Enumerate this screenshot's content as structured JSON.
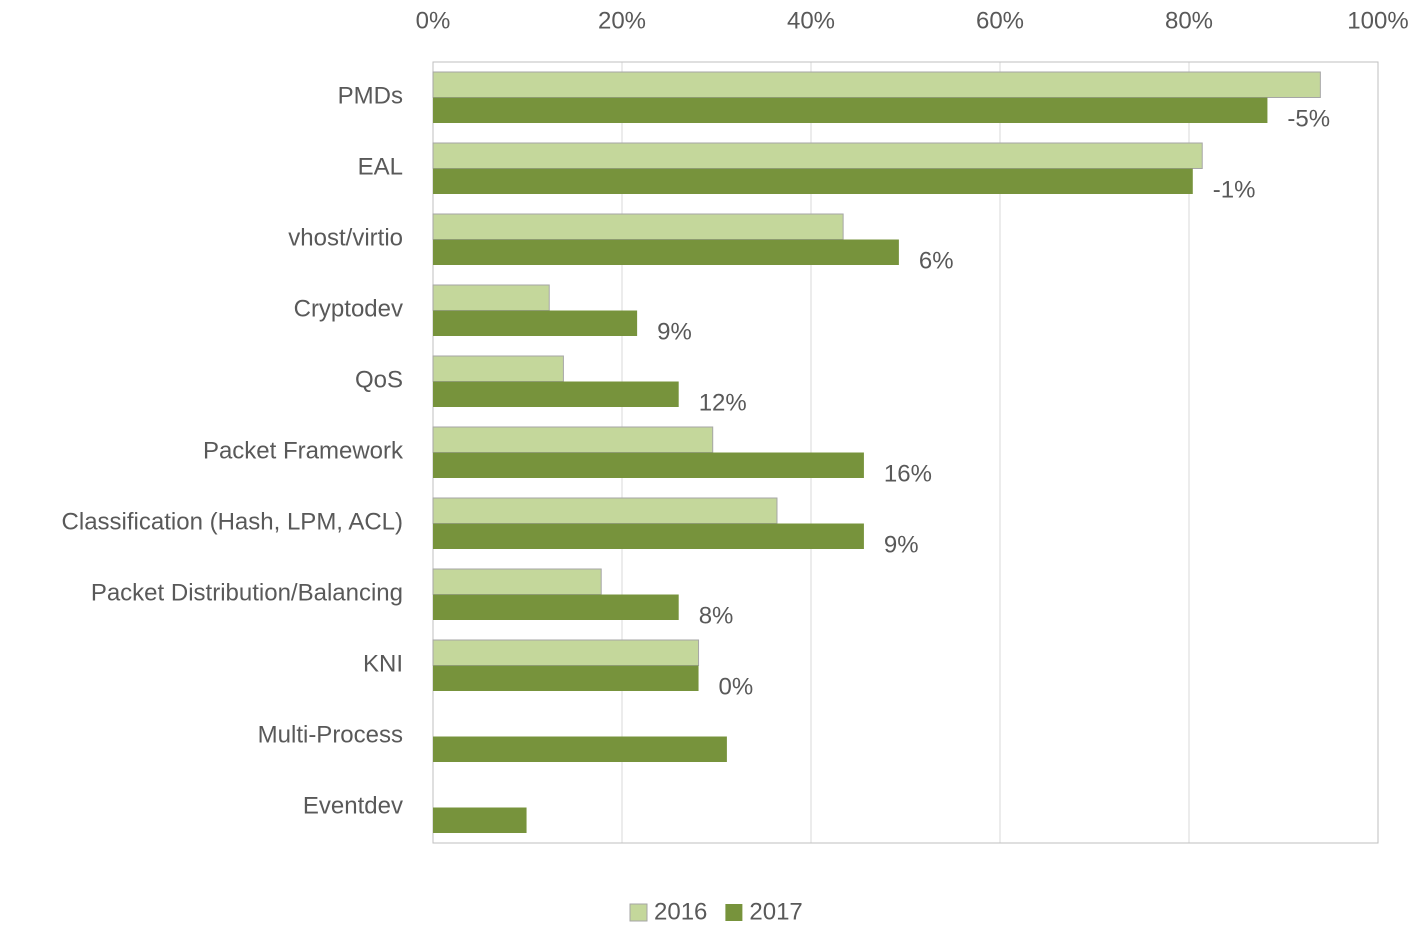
{
  "chart_data": {
    "type": "hbar",
    "categories": [
      "PMDs",
      "EAL",
      "vhost/virtio",
      "Cryptodev",
      "QoS",
      "Packet Framework",
      "Classification (Hash, LPM, ACL)",
      "Packet Distribution/Balancing",
      "KNI",
      "Multi-Process",
      "Eventdev"
    ],
    "series": [
      {
        "name": "2016",
        "color": "#c4d79b",
        "values": [
          93.9,
          81.4,
          43.4,
          12.3,
          13.8,
          29.6,
          36.4,
          17.8,
          28.1,
          null,
          null
        ]
      },
      {
        "name": "2017",
        "color": "#77933c",
        "values": [
          88.3,
          80.4,
          49.3,
          21.6,
          26.0,
          45.6,
          45.6,
          26.0,
          28.1,
          31.1,
          9.9
        ]
      }
    ],
    "change_labels": [
      "-5%",
      "-1%",
      "6%",
      "9%",
      "12%",
      "16%",
      "9%",
      "8%",
      "0%",
      null,
      null
    ],
    "xlim": [
      0,
      100
    ],
    "xticks": [
      {
        "value": 0,
        "label": "0%"
      },
      {
        "value": 20,
        "label": "20%"
      },
      {
        "value": 40,
        "label": "40%"
      },
      {
        "value": 60,
        "label": "60%"
      },
      {
        "value": 80,
        "label": "80%"
      },
      {
        "value": 100,
        "label": "100%"
      }
    ],
    "grid": true,
    "legend": "bottom"
  }
}
